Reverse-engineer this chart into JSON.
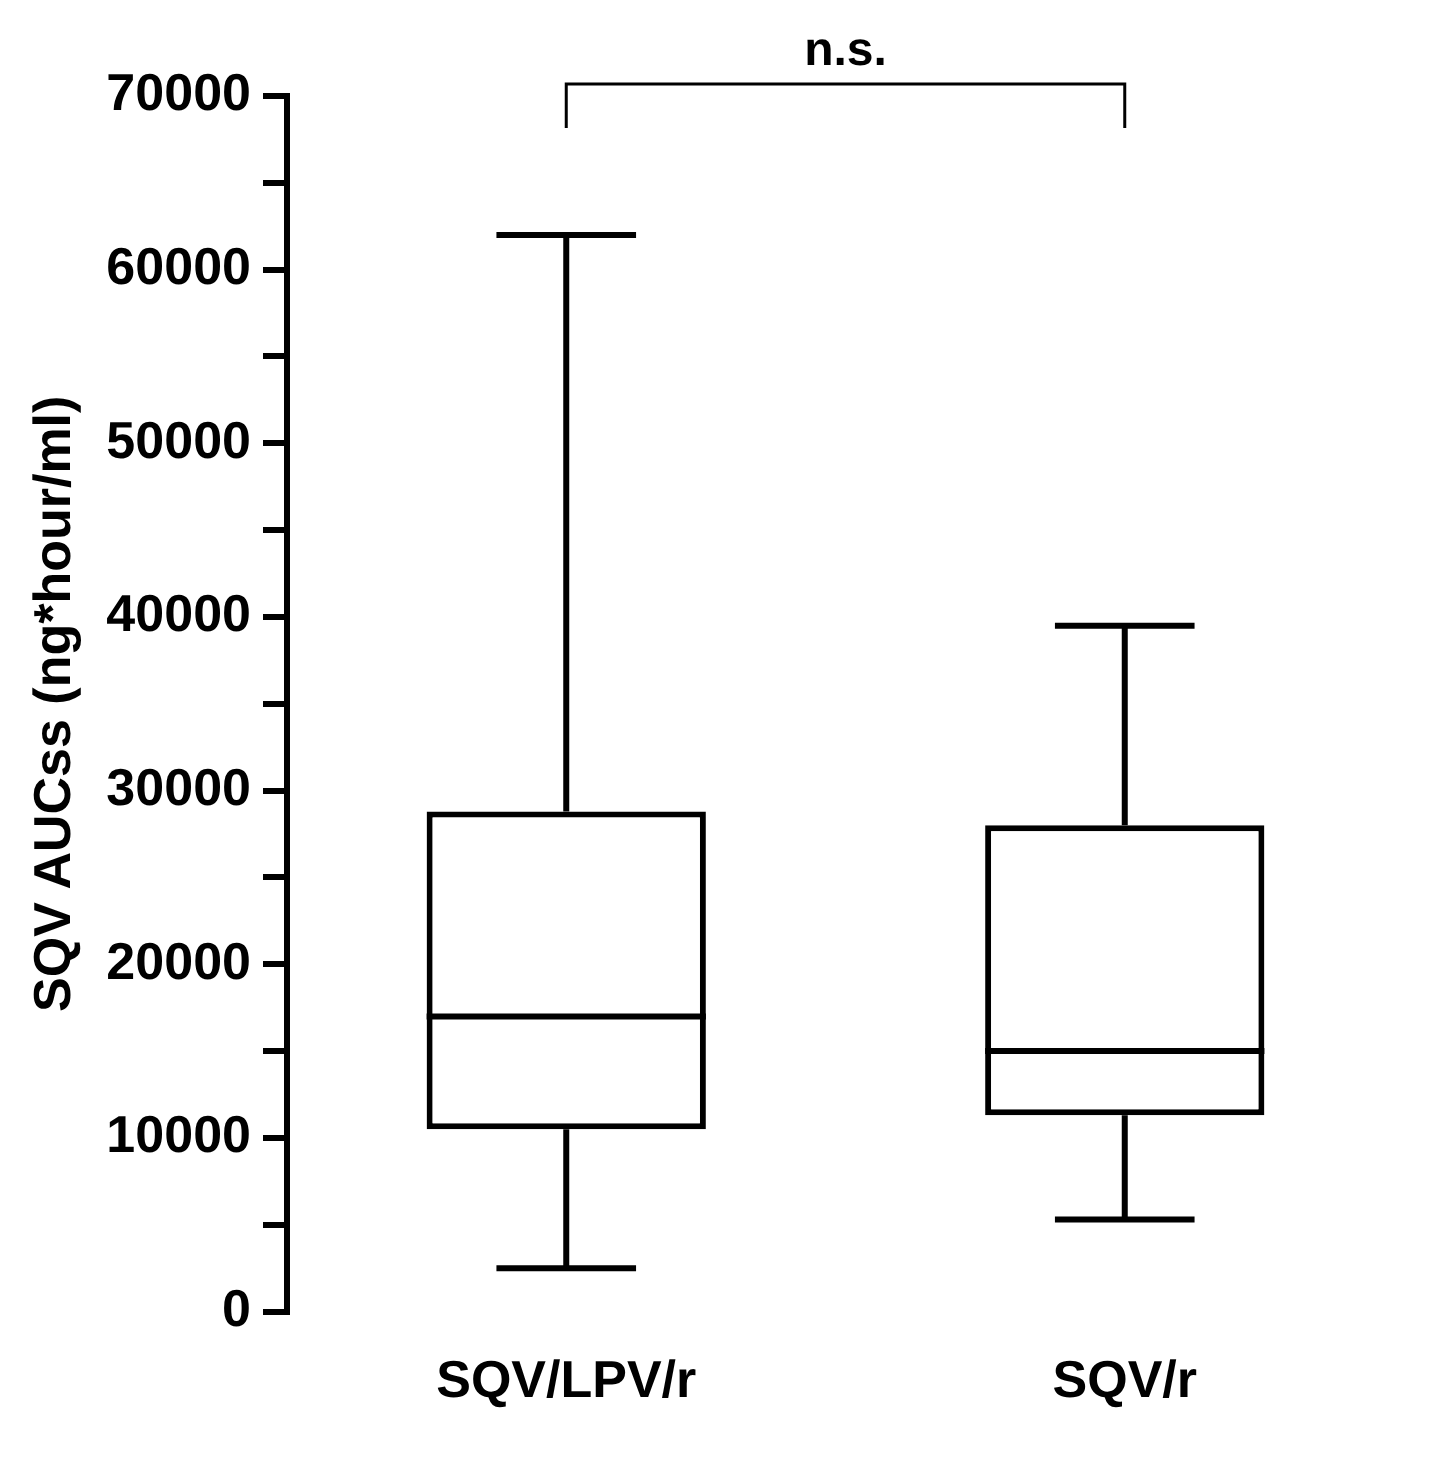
{
  "chart_data": {
    "type": "box",
    "ylabel": "SQV AUCss (ng*hour/ml)",
    "categories": [
      "SQV/LPV/r",
      "SQV/r"
    ],
    "boxes": [
      {
        "low": 2500,
        "q1": 10500,
        "median": 17000,
        "q3": 28800,
        "high": 62000
      },
      {
        "low": 5300,
        "q1": 11300,
        "median": 15000,
        "q3": 28000,
        "high": 39500
      }
    ],
    "color": "#000000",
    "ylim": [
      0,
      70000
    ],
    "yticks": [
      0,
      {
        "value": 5000,
        "label": null
      },
      10000,
      {
        "value": 15000,
        "label": null
      },
      20000,
      {
        "value": 25000,
        "label": null
      },
      30000,
      {
        "value": 35000,
        "label": null
      },
      40000,
      {
        "value": 45000,
        "label": null
      },
      50000,
      {
        "value": 55000,
        "label": null
      },
      60000,
      {
        "value": 65000,
        "label": null
      },
      70000
    ],
    "grid": false,
    "legend": false,
    "annotations": [
      "n.s."
    ]
  }
}
